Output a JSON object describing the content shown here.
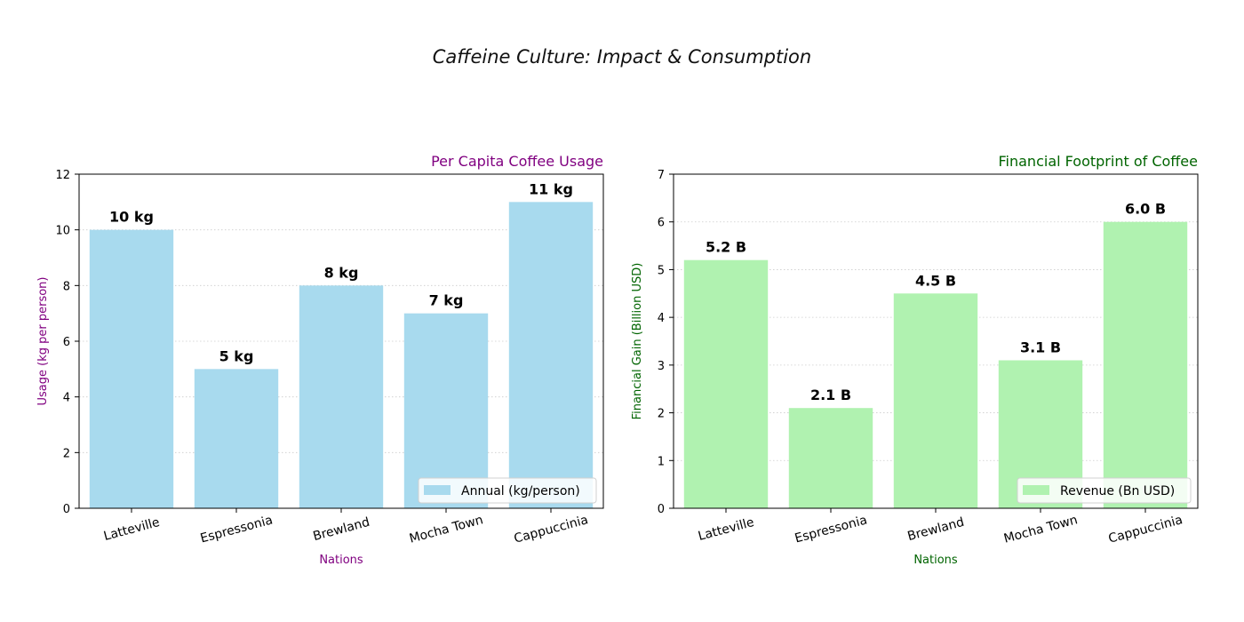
{
  "suptitle": "Caffeine Culture: Impact & Consumption",
  "chart_data": [
    {
      "type": "bar",
      "title": "Per Capita Coffee Usage",
      "xlabel": "Nations",
      "ylabel": "Usage (kg per person)",
      "categories": [
        "Latteville",
        "Espressonia",
        "Brewland",
        "Mocha Town",
        "Cappuccinia"
      ],
      "series": [
        {
          "name": "Annual (kg/person)",
          "values": [
            10,
            5,
            8,
            7,
            11
          ]
        }
      ],
      "data_labels": [
        "10 kg",
        "5 kg",
        "8 kg",
        "7 kg",
        "11 kg"
      ],
      "ylim": [
        0,
        12
      ],
      "yticks": [
        "0",
        "2",
        "4",
        "6",
        "8",
        "10",
        "12"
      ],
      "grid": "horizontal dotted",
      "legend_position": "lower-right",
      "colors": {
        "bar": "#a8daee",
        "label": "#800080"
      }
    },
    {
      "type": "bar",
      "title": "Financial Footprint of Coffee",
      "xlabel": "Nations",
      "ylabel": "Financial Gain (Billion USD)",
      "categories": [
        "Latteville",
        "Espressonia",
        "Brewland",
        "Mocha Town",
        "Cappuccinia"
      ],
      "series": [
        {
          "name": "Revenue (Bn USD)",
          "values": [
            5.2,
            2.1,
            4.5,
            3.1,
            6.0
          ]
        }
      ],
      "data_labels": [
        "5.2 B",
        "2.1 B",
        "4.5 B",
        "3.1 B",
        "6.0 B"
      ],
      "ylim": [
        0,
        7
      ],
      "yticks": [
        "0",
        "1",
        "2",
        "3",
        "4",
        "5",
        "6",
        "7"
      ],
      "grid": "horizontal dotted",
      "legend_position": "lower-right",
      "colors": {
        "bar": "#b0f2b0",
        "label": "#006400"
      }
    }
  ]
}
